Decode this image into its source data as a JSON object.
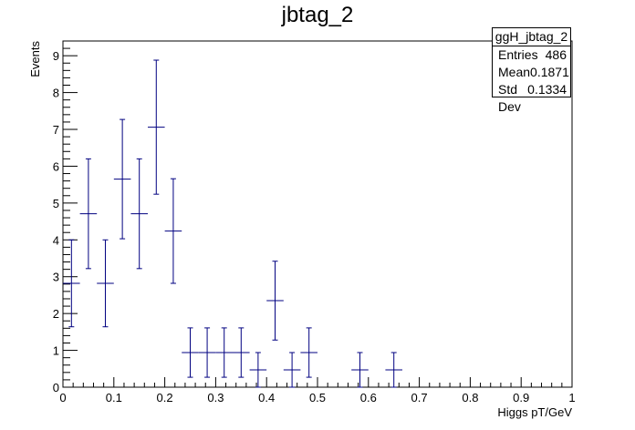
{
  "chart_data": {
    "type": "scatter",
    "title": "jbtag_2",
    "xlabel": "Higgs pT/GeV",
    "ylabel": "Events",
    "xlim": [
      0,
      1
    ],
    "ylim": [
      0,
      9.4
    ],
    "x_ticks": [
      "0",
      "0.1",
      "0.2",
      "0.3",
      "0.4",
      "0.5",
      "0.6",
      "0.7",
      "0.8",
      "0.9",
      "1"
    ],
    "y_ticks": [
      "0",
      "1",
      "2",
      "3",
      "4",
      "5",
      "6",
      "7",
      "8",
      "9"
    ],
    "bin_width": 0.0333,
    "points": [
      {
        "x": 0.0167,
        "y": 2.82,
        "err_low": 1.18,
        "err_high": 1.18
      },
      {
        "x": 0.05,
        "y": 4.71,
        "err_low": 1.49,
        "err_high": 1.49
      },
      {
        "x": 0.0833,
        "y": 2.82,
        "err_low": 1.18,
        "err_high": 1.18
      },
      {
        "x": 0.1167,
        "y": 5.65,
        "err_low": 1.62,
        "err_high": 1.62
      },
      {
        "x": 0.15,
        "y": 4.71,
        "err_low": 1.49,
        "err_high": 1.49
      },
      {
        "x": 0.1833,
        "y": 7.06,
        "err_low": 1.82,
        "err_high": 1.82
      },
      {
        "x": 0.2167,
        "y": 4.24,
        "err_low": 1.42,
        "err_high": 1.42
      },
      {
        "x": 0.25,
        "y": 0.94,
        "err_low": 0.67,
        "err_high": 0.67
      },
      {
        "x": 0.2833,
        "y": 0.94,
        "err_low": 0.67,
        "err_high": 0.67
      },
      {
        "x": 0.3167,
        "y": 0.94,
        "err_low": 0.67,
        "err_high": 0.67
      },
      {
        "x": 0.35,
        "y": 0.94,
        "err_low": 0.67,
        "err_high": 0.67
      },
      {
        "x": 0.3833,
        "y": 0.47,
        "err_low": 0.47,
        "err_high": 0.47
      },
      {
        "x": 0.4167,
        "y": 2.35,
        "err_low": 1.07,
        "err_high": 1.07
      },
      {
        "x": 0.45,
        "y": 0.47,
        "err_low": 0.47,
        "err_high": 0.47
      },
      {
        "x": 0.4833,
        "y": 0.94,
        "err_low": 0.67,
        "err_high": 0.67
      },
      {
        "x": 0.5833,
        "y": 0.47,
        "err_low": 0.47,
        "err_high": 0.47
      },
      {
        "x": 0.65,
        "y": 0.47,
        "err_low": 0.47,
        "err_high": 0.47
      }
    ],
    "marker_color": "#000080",
    "grid": false,
    "legend": "none"
  },
  "stats": {
    "name": "ggH_jbtag_2",
    "rows": [
      {
        "label": "Entries",
        "value": "486"
      },
      {
        "label": "Mean",
        "value": "0.1871"
      },
      {
        "label": "Std Dev",
        "value": "0.1334"
      }
    ]
  }
}
